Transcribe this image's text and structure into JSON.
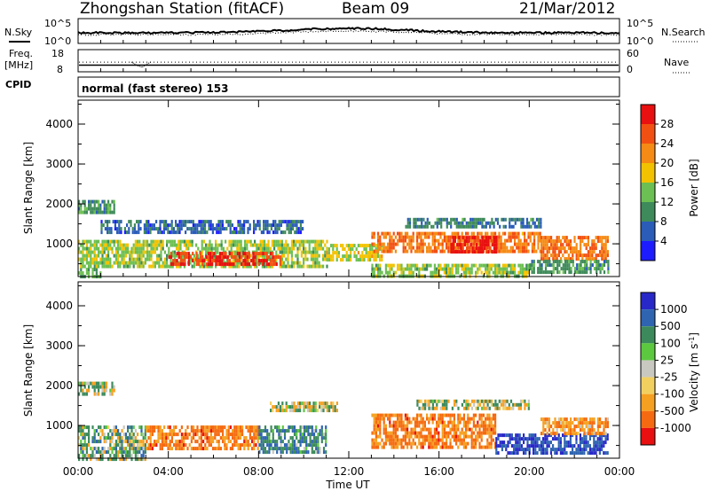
{
  "header": {
    "station": "Zhongshan Station (fitACF)",
    "beam": "Beam 09",
    "date": "21/Mar/2012"
  },
  "noise_panel": {
    "left_label": "N.Sky",
    "right_label": "N.Search",
    "left_ticks": [
      "10^5",
      "10^0"
    ],
    "right_ticks": [
      "10^5",
      "10^0"
    ]
  },
  "freq_panel": {
    "left_label_1": "Freq.",
    "left_label_2": "[MHz]",
    "right_label": "Nave",
    "left_ticks": [
      "18",
      "8"
    ],
    "right_ticks": [
      "60",
      "0"
    ],
    "freq_mhz": 11,
    "nave": 26
  },
  "cpid": {
    "label": "CPID",
    "value": "normal (fast stereo) 153"
  },
  "axes": {
    "ylabel": "Slant Range [km]",
    "xlabel": "Time UT",
    "y_ticks": [
      "1000",
      "2000",
      "3000",
      "4000"
    ],
    "x_ticks": [
      "00:00",
      "04:00",
      "08:00",
      "12:00",
      "16:00",
      "20:00",
      "00:00"
    ]
  },
  "power_bar": {
    "label": "Power [dB]",
    "ticks": [
      "4",
      "8",
      "12",
      "16",
      "20",
      "24",
      "28"
    ],
    "colors": [
      "#1c1cff",
      "#2a5cb8",
      "#3f8a5a",
      "#6cbf52",
      "#f2c200",
      "#f58a14",
      "#f25012",
      "#e81010"
    ]
  },
  "velocity_bar": {
    "label": "Velocity [m s",
    "label_sup": "-1",
    "label_end": "]",
    "ticks": [
      "1000",
      "500",
      "100",
      "25",
      "-25",
      "-100",
      "-500",
      "-1000"
    ],
    "colors": [
      "#2828c8",
      "#2e64b0",
      "#3c8a5c",
      "#5cc840",
      "#c8c8c0",
      "#f2d060",
      "#f5a020",
      "#f56a10",
      "#e81010"
    ]
  },
  "chart_data": {
    "type": "heatmap",
    "x_range": [
      "00:00",
      "00:00"
    ],
    "y_range_km": [
      180,
      4600
    ],
    "panels": [
      {
        "name": "Power",
        "unit": "dB",
        "range": [
          0,
          30
        ],
        "bands": [
          {
            "t0": 0.0,
            "t1": 1.0,
            "r0": 180,
            "r1": 400,
            "level": 12
          },
          {
            "t0": 0.0,
            "t1": 11.0,
            "r0": 450,
            "r1": 1100,
            "level": 14
          },
          {
            "t0": 4.0,
            "t1": 9.0,
            "r0": 500,
            "r1": 800,
            "level": 26
          },
          {
            "t0": 1.0,
            "t1": 10.0,
            "r0": 1300,
            "r1": 1600,
            "level": 6
          },
          {
            "t0": 0.0,
            "t1": 1.6,
            "r0": 1800,
            "r1": 2100,
            "level": 10
          },
          {
            "t0": 11.0,
            "t1": 13.5,
            "r0": 600,
            "r1": 1000,
            "level": 16
          },
          {
            "t0": 13.0,
            "t1": 20.5,
            "r0": 800,
            "r1": 1300,
            "level": 22
          },
          {
            "t0": 16.5,
            "t1": 18.5,
            "r0": 800,
            "r1": 1200,
            "level": 28
          },
          {
            "t0": 14.5,
            "t1": 20.5,
            "r0": 1450,
            "r1": 1650,
            "level": 8
          },
          {
            "t0": 13.0,
            "t1": 20.0,
            "r0": 200,
            "r1": 500,
            "level": 14
          },
          {
            "t0": 20.5,
            "t1": 23.5,
            "r0": 600,
            "r1": 1200,
            "level": 22
          },
          {
            "t0": 20.0,
            "t1": 23.5,
            "r0": 300,
            "r1": 600,
            "level": 10
          }
        ]
      },
      {
        "name": "Velocity",
        "unit": "m s-1",
        "range": [
          -1000,
          1000
        ],
        "bands": [
          {
            "t0": 0.0,
            "t1": 3.0,
            "r0": 200,
            "r1": 1000,
            "level": 100
          },
          {
            "t0": 0.0,
            "t1": 1.6,
            "r0": 1800,
            "r1": 2100,
            "level": 0
          },
          {
            "t0": 3.0,
            "t1": 8.0,
            "r0": 400,
            "r1": 1000,
            "level": -300
          },
          {
            "t0": 8.0,
            "t1": 11.0,
            "r0": 300,
            "r1": 1000,
            "level": 200
          },
          {
            "t0": 8.5,
            "t1": 11.5,
            "r0": 1400,
            "r1": 1600,
            "level": 0
          },
          {
            "t0": 13.0,
            "t1": 18.5,
            "r0": 500,
            "r1": 1300,
            "level": -300
          },
          {
            "t0": 15.0,
            "t1": 20.0,
            "r0": 1400,
            "r1": 1650,
            "level": 0
          },
          {
            "t0": 18.5,
            "t1": 23.5,
            "r0": 300,
            "r1": 800,
            "level": 500
          },
          {
            "t0": 20.5,
            "t1": 23.5,
            "r0": 800,
            "r1": 1200,
            "level": -200
          }
        ]
      }
    ]
  }
}
